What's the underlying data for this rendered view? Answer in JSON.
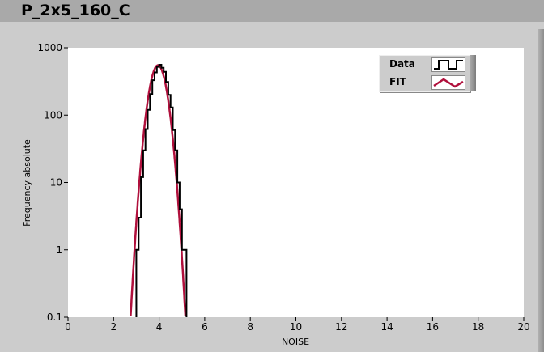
{
  "window_title": "P_2x5_160_C",
  "colors": {
    "data": "#000000",
    "fit": "#b0103c",
    "panel": "#cccccc",
    "plot_bg": "#ffffff"
  },
  "chart_data": {
    "type": "line",
    "xlabel": "NOISE",
    "ylabel": "Frequency absolute",
    "xlim": [
      0,
      20
    ],
    "ylim": [
      0.1,
      1000
    ],
    "y_scale": "log",
    "x_ticks": [
      "0",
      "2",
      "4",
      "6",
      "8",
      "10",
      "12",
      "14",
      "16",
      "18",
      "20"
    ],
    "y_ticks": [
      "0.1",
      "1",
      "10",
      "100",
      "1000"
    ],
    "grid": false,
    "legend_position": "top-right",
    "series": [
      {
        "name": "Data",
        "style": "step",
        "bin_start": 3.0,
        "bin_width": 0.1,
        "values": [
          1,
          3,
          12,
          30,
          62,
          120,
          205,
          330,
          430,
          520,
          560,
          505,
          440,
          310,
          200,
          130,
          60,
          30,
          10,
          4,
          1,
          1
        ]
      },
      {
        "name": "FIT",
        "style": "gaussian",
        "amplitude": 550,
        "mean": 3.95,
        "sigma": 0.29
      }
    ]
  },
  "legend": {
    "items": [
      {
        "label": "Data"
      },
      {
        "label": "FIT"
      }
    ]
  }
}
